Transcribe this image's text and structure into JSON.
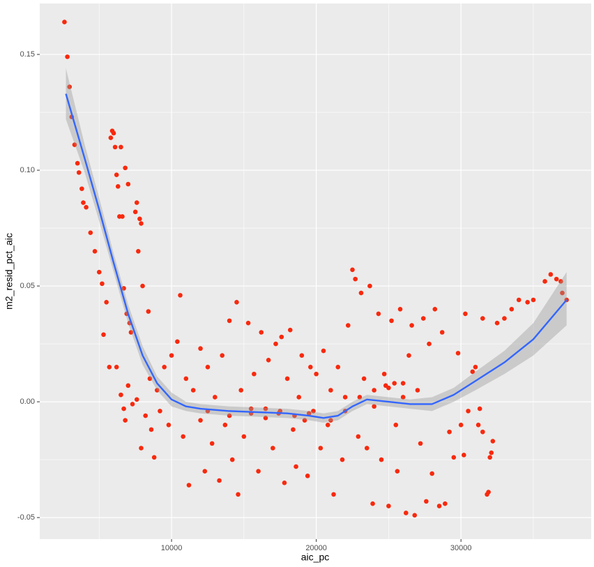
{
  "chart_data": {
    "type": "scatter",
    "x_label": "aic_pc",
    "y_label": "m2_resid_pct_aic",
    "xlim": [
      892,
      39000
    ],
    "ylim": [
      -0.0593,
      0.172
    ],
    "xticks": [
      10000,
      20000,
      30000
    ],
    "yticks": [
      {
        "value": -0.05,
        "label": "-0.05"
      },
      {
        "value": 0,
        "label": "0.00"
      },
      {
        "value": 0.05,
        "label": "0.05"
      },
      {
        "value": 0.1,
        "label": "0.10"
      },
      {
        "value": 0.15,
        "label": "0.15"
      }
    ],
    "x_minor_ticks": [
      5000,
      15000,
      25000,
      35000
    ],
    "y_minor_ticks": [
      -0.025,
      0.025,
      0.075,
      0.125
    ],
    "grid": true,
    "series": [
      {
        "color": "#f8290d",
        "x": [
          2600,
          2800,
          2950,
          3100,
          3300,
          3500,
          3600,
          3800,
          3900,
          4100,
          4400,
          4700,
          5000,
          5200,
          5500,
          5700,
          5800,
          5900,
          6000,
          6100,
          6200,
          6300,
          6400,
          6500,
          6600,
          6700,
          6800,
          6900,
          7000,
          7100,
          7200,
          7500,
          7600,
          7800,
          7900,
          7700,
          8000,
          5300,
          6200,
          6500,
          6700,
          6800,
          7000,
          7300,
          7600,
          7900,
          8200,
          8400,
          8600,
          8800,
          8500,
          9000,
          9200,
          9500,
          9800,
          10000,
          10400,
          10600,
          10800,
          11000,
          11200,
          11500,
          12000,
          12000,
          12300,
          12500,
          12800,
          13000,
          13300,
          13500,
          13700,
          14000,
          14200,
          14500,
          14600,
          14800,
          15000,
          15300,
          15500,
          15700,
          16000,
          16200,
          16500,
          16700,
          17000,
          17200,
          17400,
          17600,
          17800,
          18000,
          18200,
          18400,
          18600,
          18800,
          19000,
          19200,
          19400,
          19600,
          19800,
          20000,
          20300,
          20500,
          20800,
          21000,
          21200,
          21500,
          21800,
          22000,
          22200,
          22500,
          22700,
          22900,
          23100,
          23300,
          23500,
          23700,
          23900,
          24000,
          24300,
          24500,
          24700,
          25000,
          25200,
          25400,
          25600,
          25800,
          26000,
          26200,
          26400,
          26600,
          26800,
          27000,
          27200,
          27400,
          27600,
          27800,
          28000,
          28200,
          28500,
          28700,
          28900,
          29200,
          29500,
          29800,
          30000,
          30200,
          30300,
          30800,
          31000,
          31300,
          31200,
          31500,
          31800,
          31900,
          32100,
          32200,
          32500,
          33000,
          33500,
          34000,
          34600,
          35000,
          35800,
          36200,
          36600,
          36900,
          37000,
          37300,
          30500,
          31500,
          32000,
          12500,
          14000,
          15500,
          16500,
          17500,
          18500,
          19500,
          21000,
          22000,
          23000,
          24000,
          25000,
          26000,
          24800,
          25500
        ],
        "values": [
          0.164,
          0.149,
          0.136,
          0.123,
          0.111,
          0.103,
          0.099,
          0.092,
          0.086,
          0.084,
          0.073,
          0.065,
          0.056,
          0.051,
          0.043,
          0.015,
          0.114,
          0.117,
          0.116,
          0.11,
          0.098,
          0.093,
          0.08,
          0.11,
          0.08,
          0.049,
          0.101,
          0.038,
          0.094,
          0.034,
          0.03,
          0.082,
          0.086,
          0.079,
          0.077,
          0.065,
          0.05,
          0.029,
          0.015,
          0.003,
          -0.003,
          -0.008,
          0.007,
          -0.001,
          0.001,
          -0.02,
          -0.006,
          0.039,
          -0.012,
          -0.024,
          0.01,
          0.005,
          -0.004,
          0.015,
          -0.01,
          0.02,
          0.026,
          0.046,
          -0.015,
          0.01,
          -0.036,
          0.005,
          -0.008,
          0.023,
          -0.03,
          0.015,
          -0.018,
          0.002,
          -0.034,
          0.02,
          -0.01,
          0.035,
          -0.025,
          0.043,
          -0.04,
          0.005,
          -0.015,
          0.034,
          -0.005,
          0.012,
          -0.03,
          0.03,
          -0.003,
          0.018,
          -0.02,
          0.025,
          -0.005,
          0.028,
          -0.035,
          0.01,
          0.031,
          -0.012,
          -0.028,
          0.002,
          0.02,
          -0.008,
          -0.032,
          0.015,
          -0.004,
          0.012,
          -0.02,
          0.022,
          -0.01,
          0.005,
          -0.04,
          0.015,
          -0.025,
          0.002,
          0.033,
          0.057,
          0.053,
          -0.015,
          0.047,
          0.01,
          -0.02,
          0.05,
          -0.044,
          0.005,
          0.038,
          -0.025,
          0.012,
          -0.045,
          0.035,
          0.008,
          -0.03,
          0.04,
          0.002,
          -0.048,
          0.02,
          0.033,
          -0.049,
          0.005,
          -0.018,
          0.036,
          -0.043,
          0.025,
          -0.031,
          0.04,
          -0.045,
          0.03,
          -0.044,
          -0.013,
          -0.024,
          0.021,
          -0.01,
          -0.023,
          0.038,
          0.013,
          0.015,
          -0.003,
          -0.01,
          0.036,
          -0.04,
          -0.039,
          -0.022,
          -0.017,
          0.034,
          0.036,
          0.04,
          0.044,
          0.043,
          0.044,
          0.052,
          0.055,
          0.053,
          0.052,
          0.047,
          0.044,
          -0.004,
          -0.013,
          -0.024,
          -0.004,
          -0.006,
          -0.003,
          -0.007,
          -0.004,
          -0.006,
          -0.005,
          -0.008,
          -0.004,
          0.002,
          -0.002,
          0.006,
          0.008,
          0.007,
          -0.01
        ]
      }
    ],
    "smooth": {
      "color": "#3366ff",
      "band_color": "#999999",
      "x": [
        2700,
        4000,
        5000,
        6000,
        7000,
        8000,
        9000,
        10000,
        11000,
        12000,
        14000,
        16000,
        18000,
        19500,
        20500,
        21500,
        22500,
        23500,
        25000,
        26500,
        28000,
        29500,
        31000,
        33000,
        35000,
        37300
      ],
      "values": [
        0.133,
        0.105,
        0.083,
        0.06,
        0.038,
        0.02,
        0.008,
        0.001,
        -0.002,
        -0.003,
        -0.004,
        -0.0045,
        -0.005,
        -0.006,
        -0.007,
        -0.006,
        -0.002,
        0.001,
        0.0,
        -0.001,
        -0.001,
        0.003,
        0.009,
        0.017,
        0.027,
        0.044
      ],
      "lower": [
        0.122,
        0.099,
        0.078,
        0.056,
        0.034,
        0.016,
        0.005,
        -0.002,
        -0.004,
        -0.005,
        -0.006,
        -0.0065,
        -0.007,
        -0.008,
        -0.009,
        -0.008,
        -0.004,
        -0.001,
        -0.002,
        -0.003,
        -0.004,
        0.0,
        0.005,
        0.012,
        0.02,
        0.033
      ],
      "upper": [
        0.144,
        0.111,
        0.088,
        0.064,
        0.042,
        0.024,
        0.011,
        0.004,
        0.0,
        -0.001,
        -0.002,
        -0.0025,
        -0.003,
        -0.004,
        -0.005,
        -0.004,
        0.0,
        0.003,
        0.002,
        0.001,
        0.002,
        0.006,
        0.013,
        0.022,
        0.034,
        0.056
      ]
    }
  }
}
